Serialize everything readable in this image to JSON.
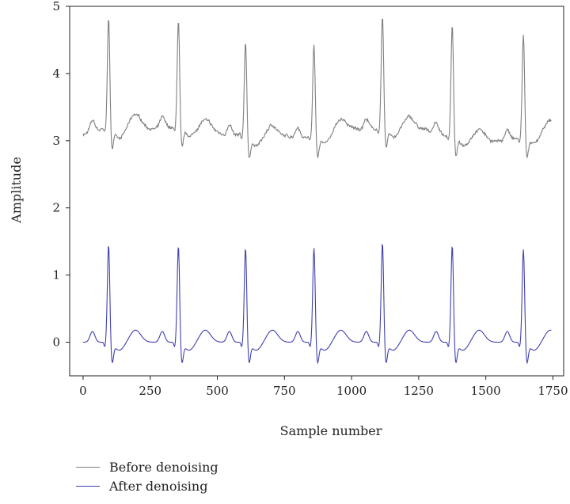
{
  "chart_data": {
    "type": "line",
    "title": "",
    "xlabel": "Sample number",
    "ylabel": "Amplitude",
    "xlim": [
      -50,
      1790
    ],
    "ylim": [
      -0.5,
      5
    ],
    "xticks": [
      0,
      250,
      500,
      750,
      1000,
      1250,
      1500,
      1750
    ],
    "yticks": [
      0,
      1,
      2,
      3,
      4,
      5
    ],
    "grid": false,
    "legend_position": "bottom-left",
    "beats": [
      95,
      355,
      605,
      860,
      1115,
      1375,
      1640
    ],
    "series": [
      {
        "name": "Before denoising",
        "color": "#808080",
        "baseline": 3.1,
        "r_peaks": [
          4.7,
          4.67,
          4.47,
          4.45,
          4.72,
          4.7,
          4.59
        ],
        "noisy": true,
        "x": [
          0,
          1745
        ],
        "y": [
          3.1,
          3.15
        ]
      },
      {
        "name": "After denoising",
        "color": "#4040b0",
        "baseline": 0.0,
        "r_peaks": [
          1.42,
          1.4,
          1.37,
          1.37,
          1.45,
          1.41,
          1.35
        ],
        "noisy": false,
        "x": [
          0,
          1745
        ],
        "y": [
          -0.02,
          0.05
        ]
      }
    ]
  }
}
